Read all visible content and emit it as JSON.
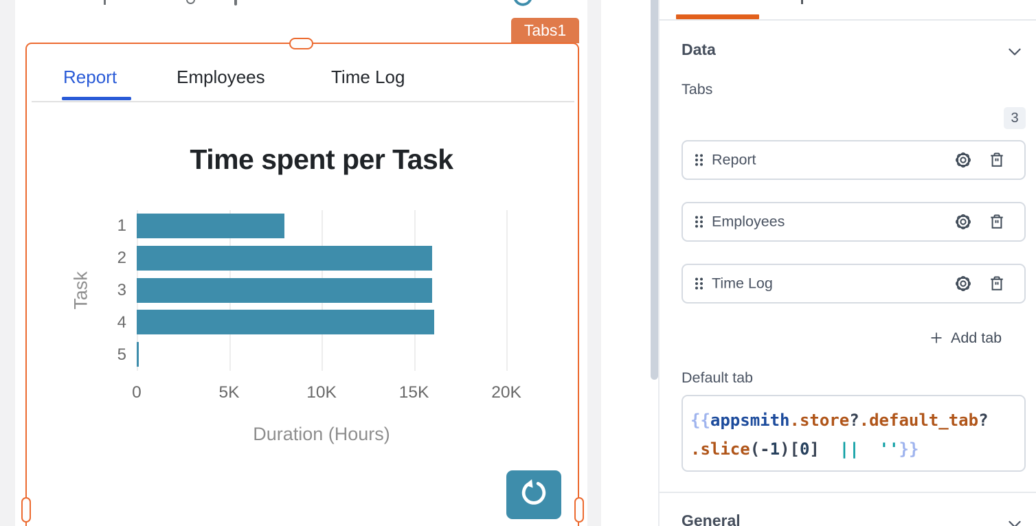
{
  "canvas": {
    "widget_name_tag": "Tabs1",
    "tabs": [
      {
        "label": "Report",
        "active": true
      },
      {
        "label": "Employees",
        "active": false
      },
      {
        "label": "Time Log",
        "active": false
      }
    ]
  },
  "chart_data": {
    "type": "bar",
    "orientation": "horizontal",
    "title": "Time spent per Task",
    "categories": [
      "1",
      "2",
      "3",
      "4",
      "5"
    ],
    "values": [
      8000,
      16000,
      16000,
      16100,
      100
    ],
    "xlabel": "Duration (Hours)",
    "ylabel": "Task",
    "x_ticks": [
      "0",
      "5K",
      "10K",
      "15K",
      "20K"
    ],
    "xlim": [
      0,
      20000
    ],
    "grid": true,
    "legend": false,
    "bar_color": "#3E8DAB"
  },
  "panel": {
    "data_section": {
      "title": "Data"
    },
    "tabs_field": {
      "label": "Tabs",
      "count": "3"
    },
    "tab_items": [
      {
        "label": "Report"
      },
      {
        "label": "Employees"
      },
      {
        "label": "Time Log"
      }
    ],
    "add_tab": {
      "label": "Add tab"
    },
    "default_tab_field": {
      "label": "Default tab"
    },
    "code": {
      "tokens": [
        {
          "t": "{{",
          "c": "brace"
        },
        {
          "t": "appsmith",
          "c": "kw"
        },
        {
          "t": ".",
          "c": "prop"
        },
        {
          "t": "store",
          "c": "prop"
        },
        {
          "t": "?",
          "c": "punct"
        },
        {
          "t": ".",
          "c": "prop"
        },
        {
          "t": "default_tab",
          "c": "prop"
        },
        {
          "t": "?",
          "c": "punct"
        },
        {
          "t": "\n",
          "c": "br"
        },
        {
          "t": ".",
          "c": "prop"
        },
        {
          "t": "slice",
          "c": "prop"
        },
        {
          "t": "(",
          "c": "punct"
        },
        {
          "t": "-",
          "c": "punct"
        },
        {
          "t": "1",
          "c": "num"
        },
        {
          "t": ")",
          "c": "punct"
        },
        {
          "t": "[",
          "c": "punct"
        },
        {
          "t": "0",
          "c": "num"
        },
        {
          "t": "]",
          "c": "punct"
        },
        {
          "t": "  ",
          "c": "punct"
        },
        {
          "t": "||",
          "c": "str"
        },
        {
          "t": "  ",
          "c": "punct"
        },
        {
          "t": "''",
          "c": "str"
        },
        {
          "t": "}}",
          "c": "brace"
        }
      ]
    },
    "general_section": {
      "title": "General"
    }
  }
}
